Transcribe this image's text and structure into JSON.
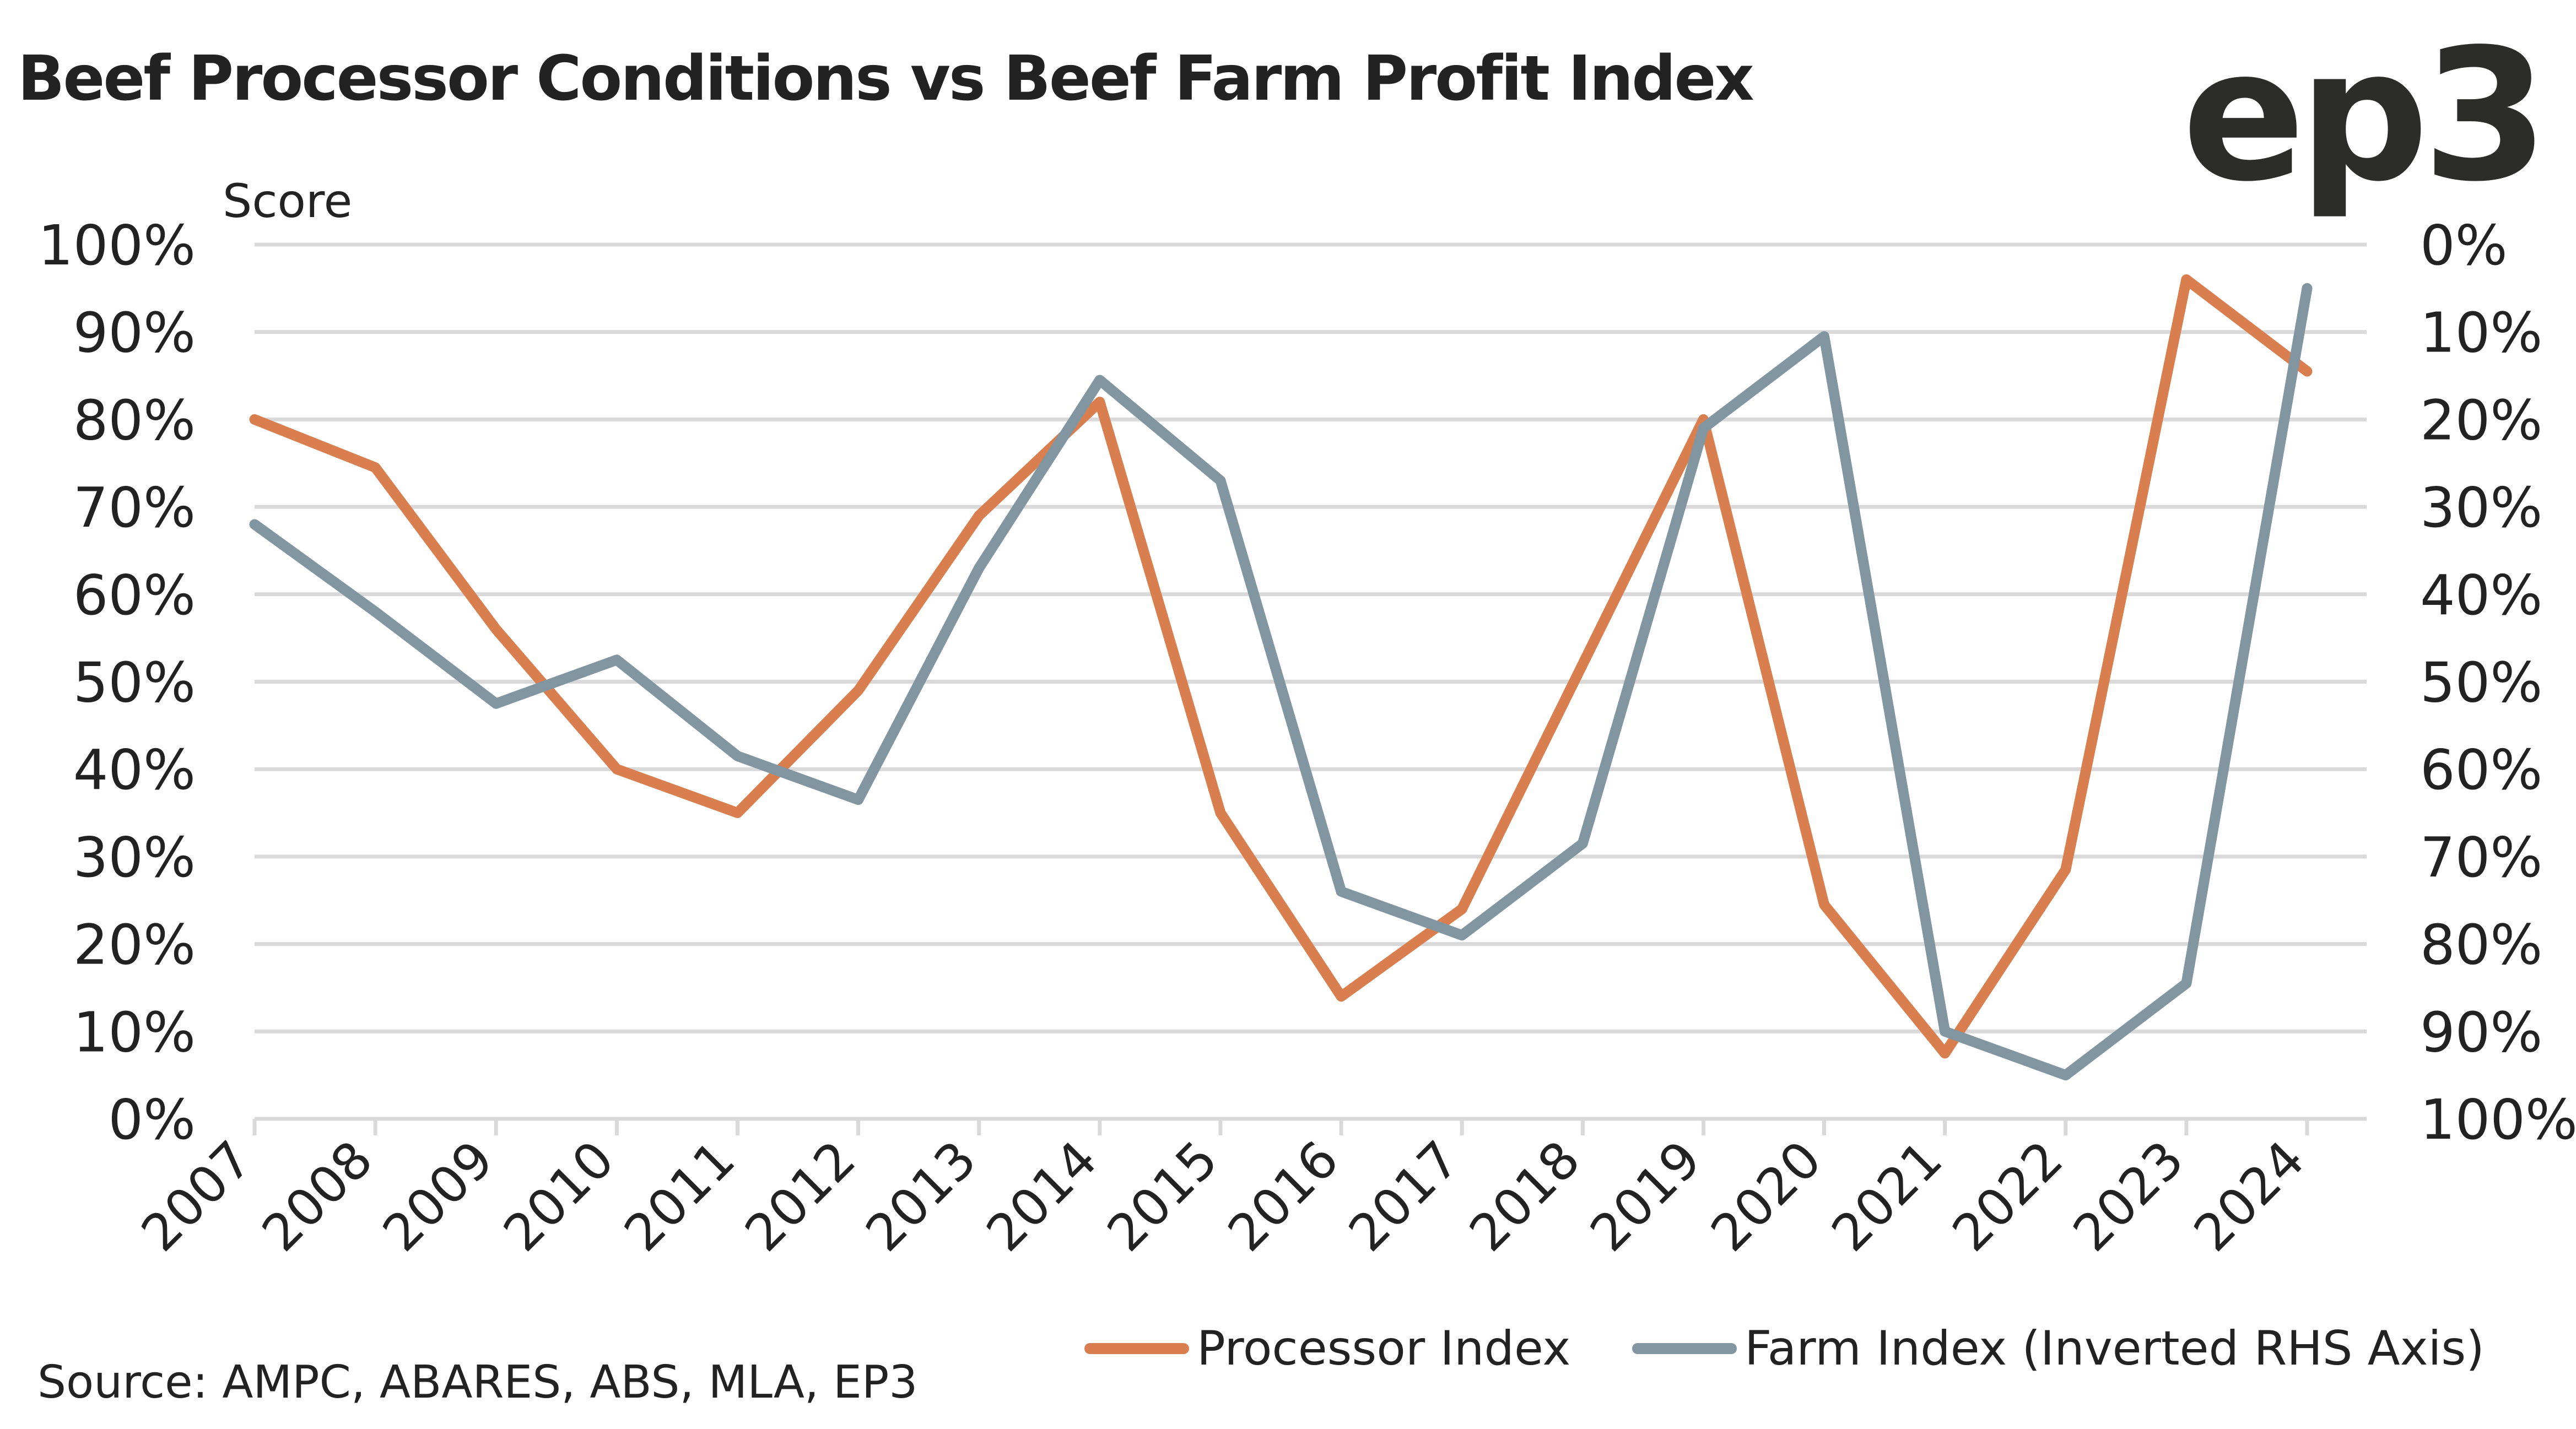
{
  "header": {
    "title": "Beef Processor Conditions vs Beef Farm Profit Index",
    "logo_text": "ep3"
  },
  "footer": {
    "source": "Source: AMPC, ABARES, ABS, MLA, EP3"
  },
  "colors": {
    "processor": "#D97E4F",
    "farm": "#8296A2",
    "grid": "#D9D9D9",
    "text": "#222222"
  },
  "chart_data": {
    "type": "line",
    "title": "Beef Processor Conditions vs Beef Farm Profit Index",
    "xlabel": "",
    "ylabel": "Score",
    "y2label": "",
    "categories": [
      "2007",
      "2008",
      "2009",
      "2010",
      "2011",
      "2012",
      "2013",
      "2014",
      "2015",
      "2016",
      "2017",
      "2018",
      "2019",
      "2020",
      "2021",
      "2022",
      "2023",
      "2024"
    ],
    "ylim": [
      0,
      100
    ],
    "y2lim_inverted": [
      0,
      100
    ],
    "left_ticks": [
      "0%",
      "10%",
      "20%",
      "30%",
      "40%",
      "50%",
      "60%",
      "70%",
      "80%",
      "90%",
      "100%"
    ],
    "right_ticks": [
      "100%",
      "90%",
      "80%",
      "70%",
      "60%",
      "50%",
      "40%",
      "30%",
      "20%",
      "10%",
      "0%"
    ],
    "grid": true,
    "legend_position": "bottom-right",
    "series": [
      {
        "name": "Processor Index",
        "axis": "left",
        "values": [
          80,
          74.5,
          56,
          40,
          35,
          49,
          69,
          82,
          35,
          14,
          24,
          52,
          80,
          24.5,
          7.5,
          28.5,
          96,
          85.5
        ]
      },
      {
        "name": "Farm Index (Inverted RHS Axis)",
        "axis": "right-inverted",
        "values": [
          32,
          42,
          52.5,
          47.5,
          58.5,
          63.5,
          37,
          15.5,
          27,
          74,
          79,
          68.5,
          21,
          10.5,
          90,
          95,
          84.5,
          5
        ]
      }
    ]
  }
}
